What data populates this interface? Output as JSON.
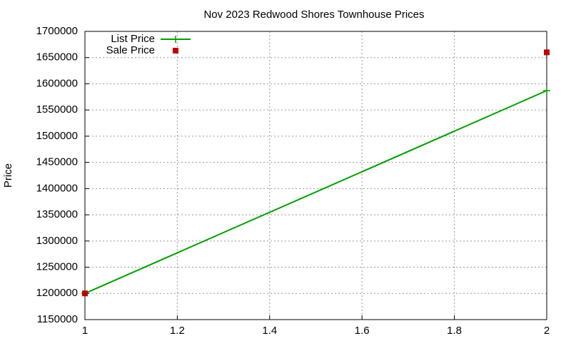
{
  "chart_data": {
    "type": "scatter",
    "title": "Nov 2023 Redwood Shores Townhouse Prices",
    "y_label": "Price",
    "xlim": [
      1,
      2
    ],
    "xticks": [
      1,
      1.2,
      1.4,
      1.6,
      1.8,
      2
    ],
    "ylim": [
      1150000,
      1700000
    ],
    "yticks": [
      1150000,
      1200000,
      1250000,
      1300000,
      1350000,
      1400000,
      1450000,
      1500000,
      1550000,
      1600000,
      1650000,
      1700000
    ],
    "grid": true,
    "legend": "top-left",
    "series": [
      {
        "name": "List Price",
        "color": "#00a000",
        "style": "linespoints",
        "x": [
          1,
          2
        ],
        "values": [
          1200000,
          1587000
        ]
      },
      {
        "name": "Sale Price",
        "color": "#c00000",
        "style": "points",
        "x": [
          1,
          2
        ],
        "values": [
          1200000,
          1660000
        ]
      }
    ]
  }
}
